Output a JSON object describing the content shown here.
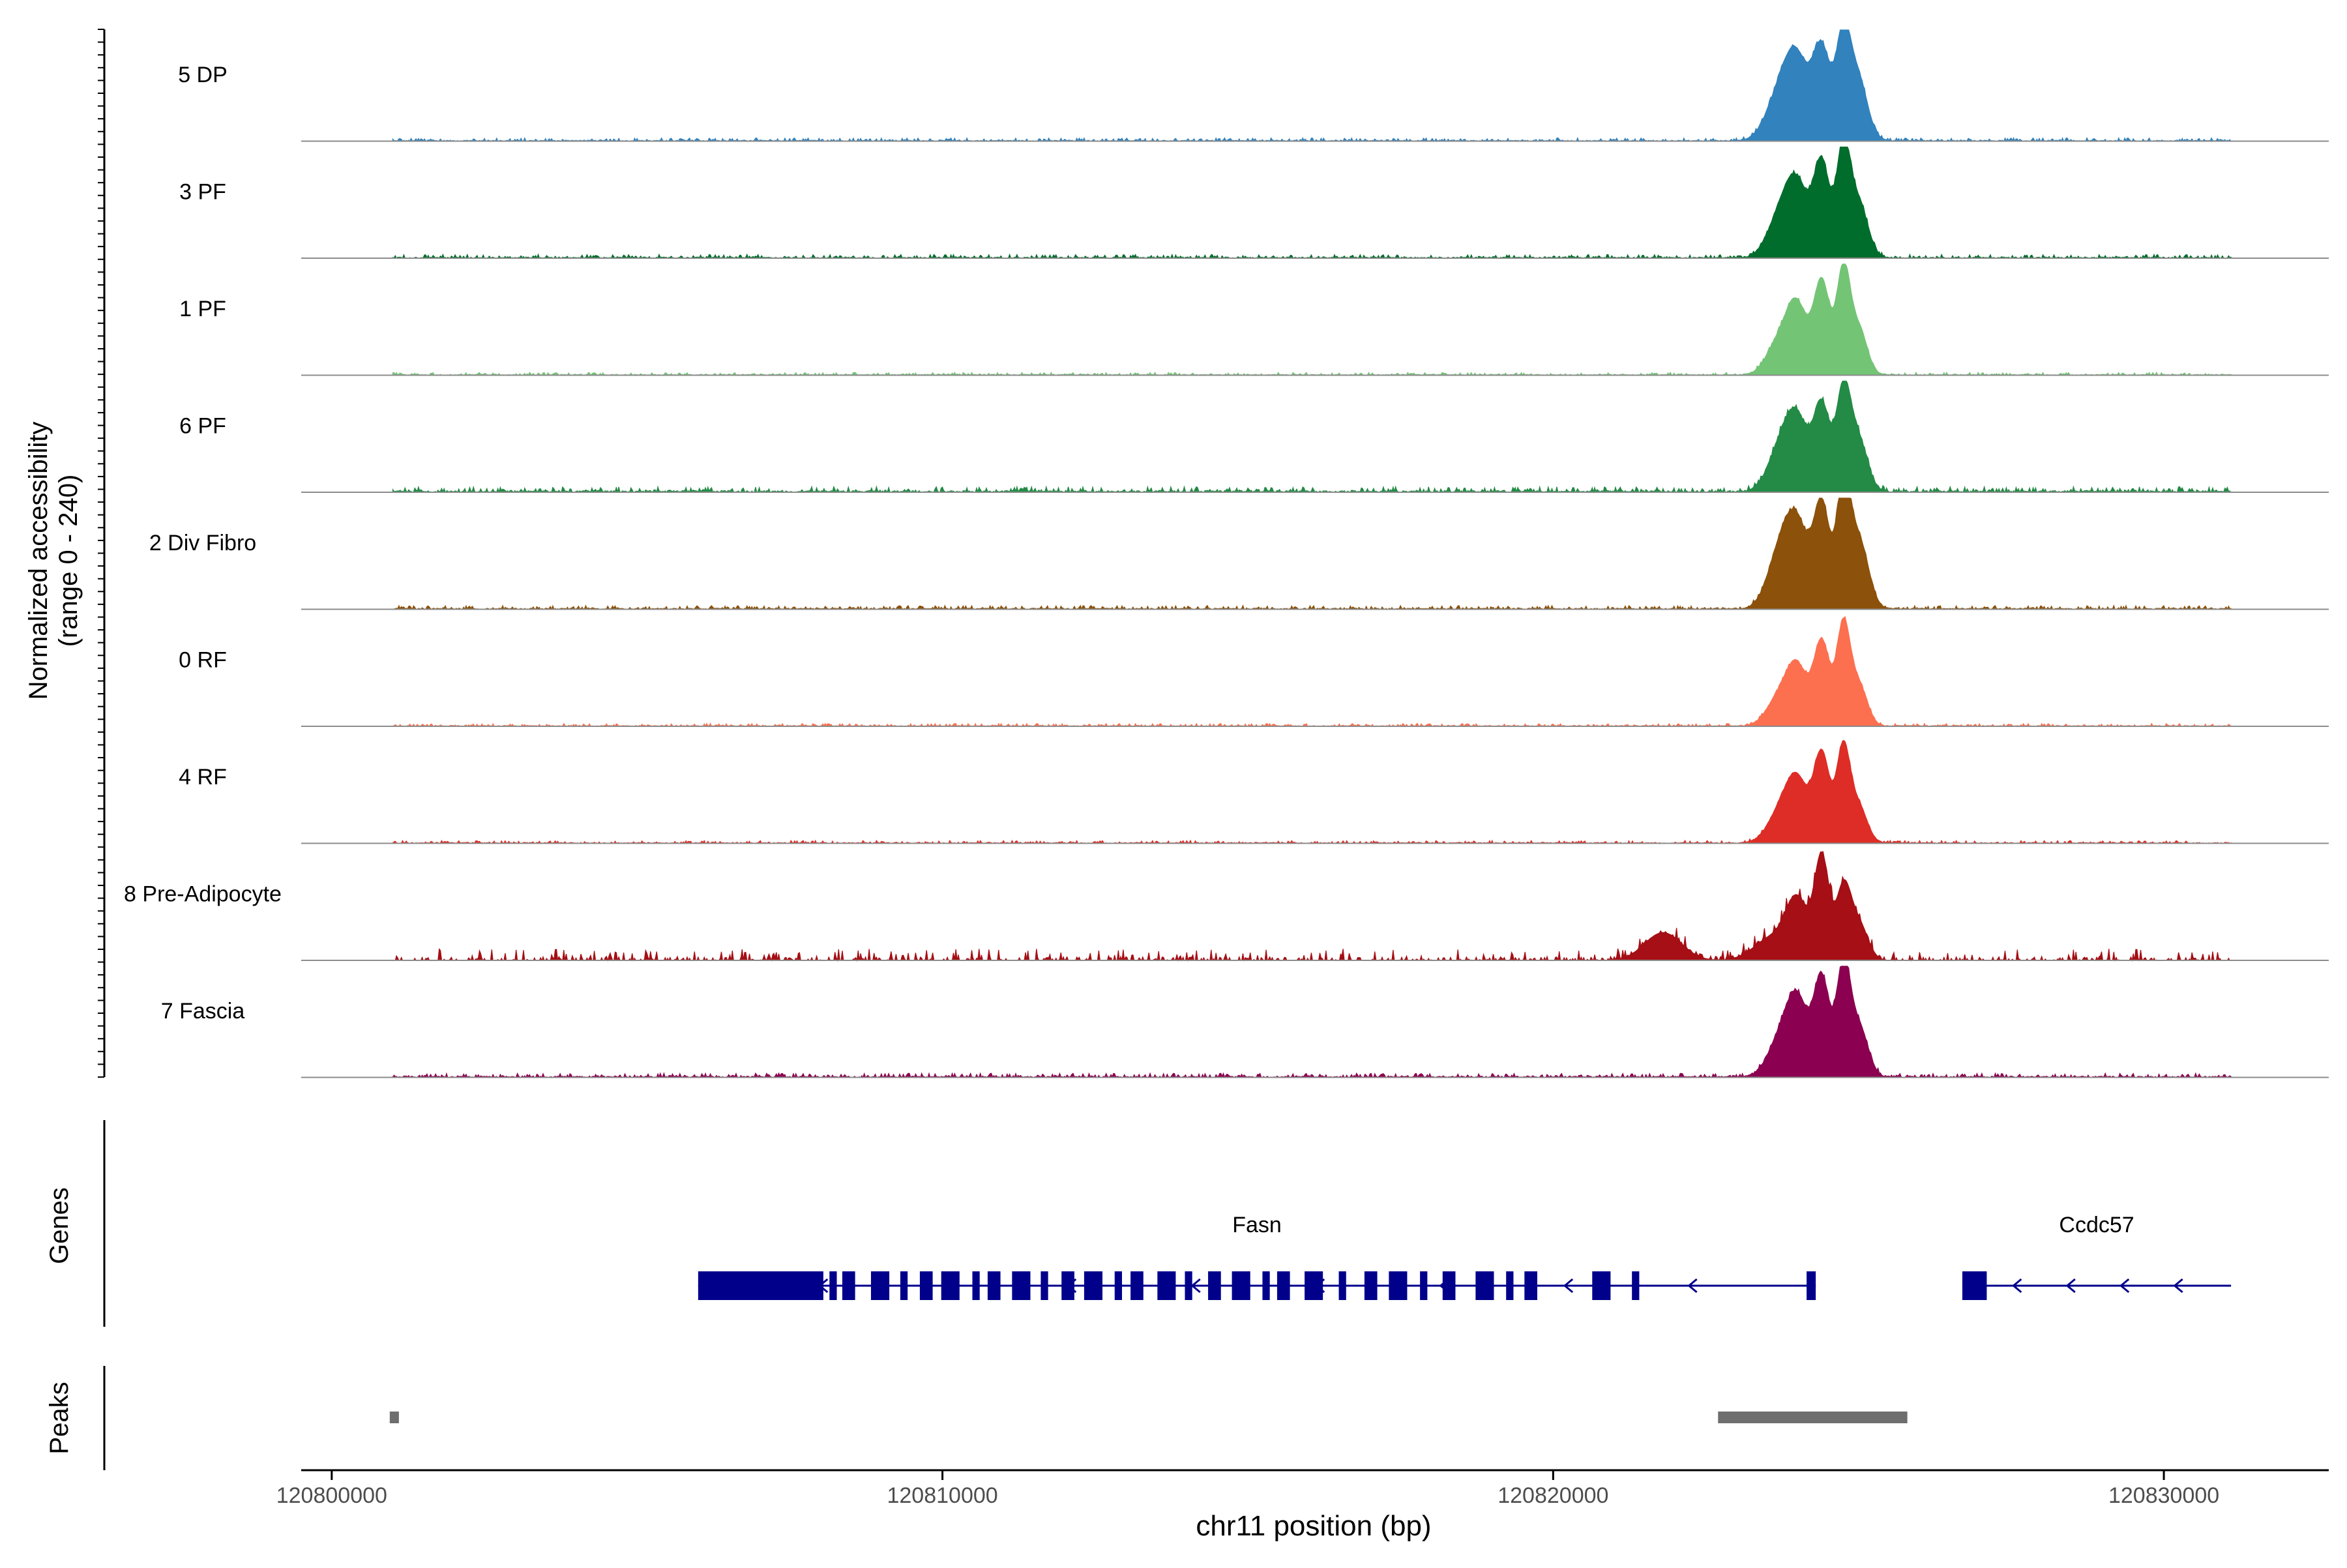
{
  "chart_data": {
    "type": "area",
    "title": "",
    "xlabel": "chr11 position (bp)",
    "ylabel_line1": "Normalized accessibility",
    "ylabel_line2": "(range 0 - 240)",
    "y_range": [
      0,
      240
    ],
    "xlim": [
      120799500,
      120832700
    ],
    "x_ticks": [
      120800000,
      120810000,
      120820000,
      120830000
    ],
    "x_tick_labels": [
      "120800000",
      "120810000",
      "120820000",
      "120830000"
    ],
    "track_start": 120801000,
    "track_end": 120831100,
    "tracks": [
      {
        "name": "5 DP",
        "color": "#3182bd",
        "peaks": [
          [
            120823700,
            90,
            220
          ],
          [
            120824000,
            160,
            200
          ],
          [
            120824400,
            190,
            140
          ],
          [
            120824750,
            220,
            120
          ],
          [
            120825000,
            130,
            150
          ]
        ],
        "noise": 7,
        "sparse": false
      },
      {
        "name": "3 PF",
        "color": "#006d2c",
        "peaks": [
          [
            120823700,
            80,
            200
          ],
          [
            120824000,
            150,
            190
          ],
          [
            120824400,
            200,
            130
          ],
          [
            120824750,
            230,
            110
          ],
          [
            120825000,
            120,
            150
          ]
        ],
        "noise": 8,
        "sparse": false
      },
      {
        "name": "1 PF",
        "color": "#74c476",
        "peaks": [
          [
            120823700,
            70,
            200
          ],
          [
            120824000,
            140,
            170
          ],
          [
            120824400,
            200,
            130
          ],
          [
            120824750,
            220,
            110
          ],
          [
            120825000,
            100,
            140
          ]
        ],
        "noise": 6,
        "sparse": false
      },
      {
        "name": "6 PF",
        "color": "#238b45",
        "peaks": [
          [
            120823700,
            80,
            200
          ],
          [
            120824000,
            150,
            190
          ],
          [
            120824400,
            180,
            130
          ],
          [
            120824750,
            210,
            120
          ],
          [
            120825000,
            110,
            150
          ]
        ],
        "noise": 12,
        "sparse": false
      },
      {
        "name": "2 Div Fibro",
        "color": "#8c510a",
        "peaks": [
          [
            120823700,
            110,
            200
          ],
          [
            120824000,
            170,
            190
          ],
          [
            120824400,
            220,
            130
          ],
          [
            120824750,
            250,
            110
          ],
          [
            120825000,
            150,
            160
          ]
        ],
        "noise": 8,
        "sparse": false
      },
      {
        "name": "0 RF",
        "color": "#fc7050",
        "peaks": [
          [
            120823700,
            60,
            200
          ],
          [
            120824000,
            120,
            170
          ],
          [
            120824400,
            180,
            130
          ],
          [
            120824750,
            210,
            110
          ],
          [
            120825000,
            90,
            140
          ]
        ],
        "noise": 6,
        "sparse": false
      },
      {
        "name": "4 RF",
        "color": "#de2d26",
        "peaks": [
          [
            120823700,
            60,
            200
          ],
          [
            120824000,
            130,
            180
          ],
          [
            120824400,
            190,
            130
          ],
          [
            120824750,
            200,
            110
          ],
          [
            120825000,
            80,
            140
          ]
        ],
        "noise": 6,
        "sparse": false
      },
      {
        "name": "8 Pre-Adipocyte",
        "color": "#a50f15",
        "peaks": [
          [
            120821800,
            60,
            300
          ],
          [
            120823600,
            50,
            300
          ],
          [
            120824000,
            120,
            180
          ],
          [
            120824400,
            220,
            120
          ],
          [
            120824750,
            150,
            120
          ],
          [
            120825000,
            80,
            150
          ]
        ],
        "noise": 25,
        "sparse": true
      },
      {
        "name": "7 Fascia",
        "color": "#8b0050",
        "peaks": [
          [
            120823700,
            70,
            200
          ],
          [
            120824000,
            160,
            180
          ],
          [
            120824400,
            210,
            130
          ],
          [
            120824750,
            230,
            110
          ],
          [
            120825000,
            110,
            150
          ]
        ],
        "noise": 9,
        "sparse": false
      }
    ],
    "genes": {
      "panel_label": "Genes",
      "items": [
        {
          "name": "Fasn",
          "start": 120806000,
          "end": 120824300,
          "strand": "-"
        },
        {
          "name": "Ccdc57",
          "start": 120826700,
          "end": 120831100,
          "strand": "-"
        }
      ]
    },
    "peaks_track": {
      "panel_label": "Peaks",
      "regions": [
        [
          120800950,
          120801100
        ],
        [
          120822700,
          120825800
        ]
      ]
    }
  }
}
